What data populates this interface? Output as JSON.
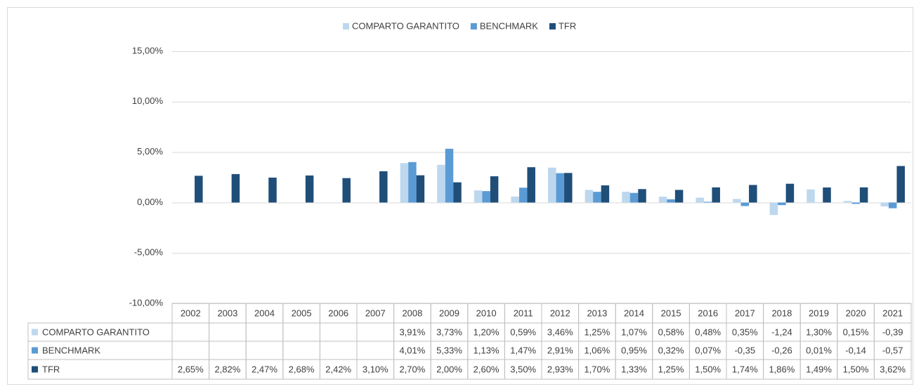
{
  "chart_data": {
    "type": "bar",
    "categories": [
      "2002",
      "2003",
      "2004",
      "2005",
      "2006",
      "2007",
      "2008",
      "2009",
      "2010",
      "2011",
      "2012",
      "2013",
      "2014",
      "2015",
      "2016",
      "2017",
      "2018",
      "2019",
      "2020",
      "2021"
    ],
    "series": [
      {
        "name": "COMPARTO GARANTITO",
        "color": "#bdd7ee",
        "values": [
          null,
          null,
          null,
          null,
          null,
          null,
          3.91,
          3.73,
          1.2,
          0.59,
          3.46,
          1.25,
          1.07,
          0.58,
          0.48,
          0.35,
          -1.24,
          1.3,
          0.15,
          -0.39
        ],
        "value_labels": [
          null,
          null,
          null,
          null,
          null,
          null,
          "3,91%",
          "3,73%",
          "1,20%",
          "0,59%",
          "3,46%",
          "1,25%",
          "1,07%",
          "0,58%",
          "0,48%",
          "0,35%",
          "-1,24",
          "1,30%",
          "0,15%",
          "-0,39"
        ]
      },
      {
        "name": "BENCHMARK",
        "color": "#5b9bd5",
        "values": [
          null,
          null,
          null,
          null,
          null,
          null,
          4.01,
          5.33,
          1.13,
          1.47,
          2.91,
          1.06,
          0.95,
          0.32,
          0.07,
          -0.35,
          -0.26,
          0.01,
          -0.14,
          -0.57
        ],
        "value_labels": [
          null,
          null,
          null,
          null,
          null,
          null,
          "4,01%",
          "5,33%",
          "1,13%",
          "1,47%",
          "2,91%",
          "1,06%",
          "0,95%",
          "0,32%",
          "0,07%",
          "-0,35",
          "-0,26",
          "0,01%",
          "-0,14",
          "-0,57"
        ]
      },
      {
        "name": "TFR",
        "color": "#1f4e79",
        "values": [
          2.65,
          2.82,
          2.47,
          2.68,
          2.42,
          3.1,
          2.7,
          2.0,
          2.6,
          3.5,
          2.93,
          1.7,
          1.33,
          1.25,
          1.5,
          1.74,
          1.86,
          1.49,
          1.5,
          3.62
        ],
        "value_labels": [
          "2,65%",
          "2,82%",
          "2,47%",
          "2,68%",
          "2,42%",
          "3,10%",
          "2,70%",
          "2,00%",
          "2,60%",
          "3,50%",
          "2,93%",
          "1,70%",
          "1,33%",
          "1,25%",
          "1,50%",
          "1,74%",
          "1,86%",
          "1,49%",
          "1,50%",
          "3,62%"
        ]
      }
    ],
    "ylim": [
      -10,
      15
    ],
    "yticks": [
      {
        "value": 15,
        "label": "15,00%"
      },
      {
        "value": 10,
        "label": "10,00%"
      },
      {
        "value": 5,
        "label": "5,00%"
      },
      {
        "value": 0,
        "label": "0,00%"
      },
      {
        "value": -5,
        "label": "-5,00%"
      },
      {
        "value": -10,
        "label": "-10,00%"
      }
    ],
    "grid": true,
    "legend": "top"
  }
}
